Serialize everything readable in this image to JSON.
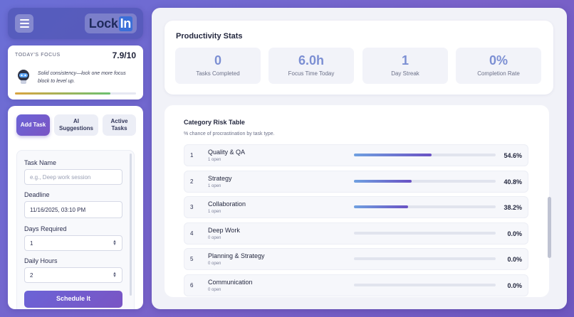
{
  "header": {
    "logo_text": "Lock",
    "logo_accent": "In"
  },
  "focus": {
    "title": "TODAY'S FOCUS",
    "score": "7.9/10",
    "message": "Solid consistency—lock one more focus block to level up.",
    "progress": 0.79
  },
  "tabs": [
    {
      "label": "Add Task",
      "active": true
    },
    {
      "label": "AI Suggestions",
      "active": false
    },
    {
      "label": "Active Tasks",
      "active": false
    }
  ],
  "form": {
    "task_name_label": "Task Name",
    "task_name_placeholder": "e.g., Deep work session",
    "deadline_label": "Deadline",
    "deadline_value": "11/16/2025, 03:10 PM",
    "days_label": "Days Required",
    "days_value": "1",
    "hours_label": "Daily Hours",
    "hours_value": "2",
    "submit_label": "Schedule It"
  },
  "stats": {
    "title": "Productivity Stats",
    "items": [
      {
        "value": "0",
        "label": "Tasks Completed"
      },
      {
        "value": "6.0h",
        "label": "Focus Time Today"
      },
      {
        "value": "1",
        "label": "Day Streak"
      },
      {
        "value": "0%",
        "label": "Completion Rate"
      }
    ]
  },
  "risk": {
    "title": "Category Risk Table",
    "subtitle": "% chance of procrastination by task type.",
    "rows": [
      {
        "index": "1",
        "name": "Quality & QA",
        "open": "1 open",
        "pct": "54.6%",
        "fill": 0.546
      },
      {
        "index": "2",
        "name": "Strategy",
        "open": "1 open",
        "pct": "40.8%",
        "fill": 0.408
      },
      {
        "index": "3",
        "name": "Collaboration",
        "open": "1 open",
        "pct": "38.2%",
        "fill": 0.382
      },
      {
        "index": "4",
        "name": "Deep Work",
        "open": "0 open",
        "pct": "0.0%",
        "fill": 0
      },
      {
        "index": "5",
        "name": "Planning & Strategy",
        "open": "0 open",
        "pct": "0.0%",
        "fill": 0
      },
      {
        "index": "6",
        "name": "Communication",
        "open": "0 open",
        "pct": "0.0%",
        "fill": 0
      }
    ]
  },
  "colors": {
    "accent": "#6b63d6",
    "stat_value": "#7c8fd3"
  }
}
